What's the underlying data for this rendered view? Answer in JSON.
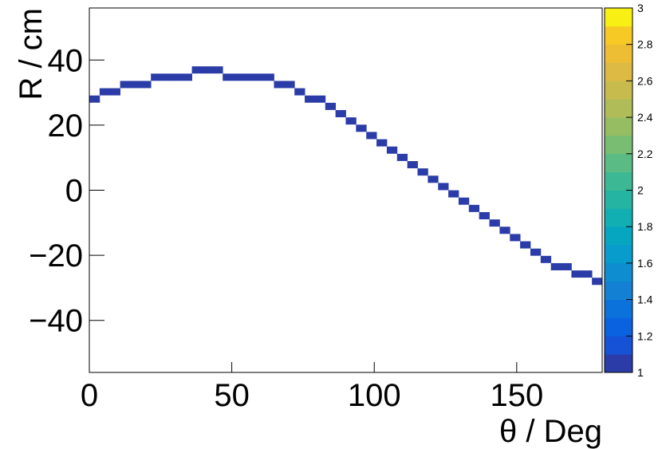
{
  "chart_data": {
    "type": "heatmap",
    "x_label": "θ / Deg",
    "y_label": "R / cm",
    "x": [
      1.8,
      5.4,
      9.0,
      12.6,
      16.2,
      19.8,
      23.4,
      27.0,
      30.6,
      34.2,
      37.8,
      41.4,
      45.0,
      48.6,
      52.2,
      55.8,
      59.4,
      63.0,
      66.6,
      70.2,
      73.8,
      77.4,
      81.0,
      84.6,
      88.2,
      91.8,
      95.4,
      99.0,
      102.6,
      106.2,
      109.8,
      113.4,
      117.0,
      120.6,
      124.2,
      127.8,
      131.4,
      135.0,
      138.6,
      142.2,
      145.8,
      149.4,
      153.0,
      156.6,
      160.2,
      163.8,
      167.4,
      171.0,
      174.6,
      178.2
    ],
    "y": [
      28,
      30.24,
      30.24,
      32.48,
      32.48,
      32.48,
      34.72,
      34.72,
      34.72,
      34.72,
      36.96,
      36.96,
      36.96,
      34.72,
      34.72,
      34.72,
      34.72,
      34.72,
      32.48,
      32.48,
      30.24,
      28,
      28,
      25.76,
      23.52,
      21.28,
      19.04,
      16.8,
      14.56,
      12.32,
      10.08,
      7.84,
      5.6,
      3.36,
      1.12,
      -1.12,
      -3.36,
      -5.6,
      -7.84,
      -10.08,
      -12.32,
      -14.56,
      -16.8,
      -19.04,
      -21.28,
      -23.52,
      -23.52,
      -25.76,
      -25.76,
      -28
    ],
    "z": [
      1,
      1,
      1,
      1,
      1,
      1,
      1,
      1,
      1,
      1,
      1,
      1,
      1,
      1,
      1,
      1,
      1,
      1,
      1,
      1,
      1,
      1,
      1,
      1,
      1,
      1,
      1,
      1,
      1,
      1,
      1,
      1,
      1,
      1,
      1,
      1,
      1,
      1,
      1,
      1,
      1,
      1,
      1,
      1,
      1,
      1,
      1,
      1,
      1,
      1
    ],
    "xlim": [
      0,
      180
    ],
    "xticks": [
      0,
      50,
      100,
      150
    ],
    "ylim": [
      -56,
      56
    ],
    "yticks": [
      {
        "value": -40,
        "label": "−40"
      },
      {
        "value": -20,
        "label": "−20"
      },
      0,
      20,
      40
    ],
    "zlim": [
      1,
      3
    ],
    "zticks": [
      1,
      1.2,
      1.4,
      1.6,
      1.8,
      2,
      2.2,
      2.4,
      2.6,
      2.8,
      3
    ],
    "palette": [
      "#2b3ba8",
      "#1552d6",
      "#0a62e0",
      "#0b72dc",
      "#1380d3",
      "#0e8dd0",
      "#079ccb",
      "#06a6c0",
      "#11aeb2",
      "#26b4a2",
      "#3cb994",
      "#5abc84",
      "#78bd72",
      "#96bd62",
      "#b0bc58",
      "#c8bb4e",
      "#dcba43",
      "#edbd34",
      "#f7c925",
      "#f8ef14"
    ]
  }
}
